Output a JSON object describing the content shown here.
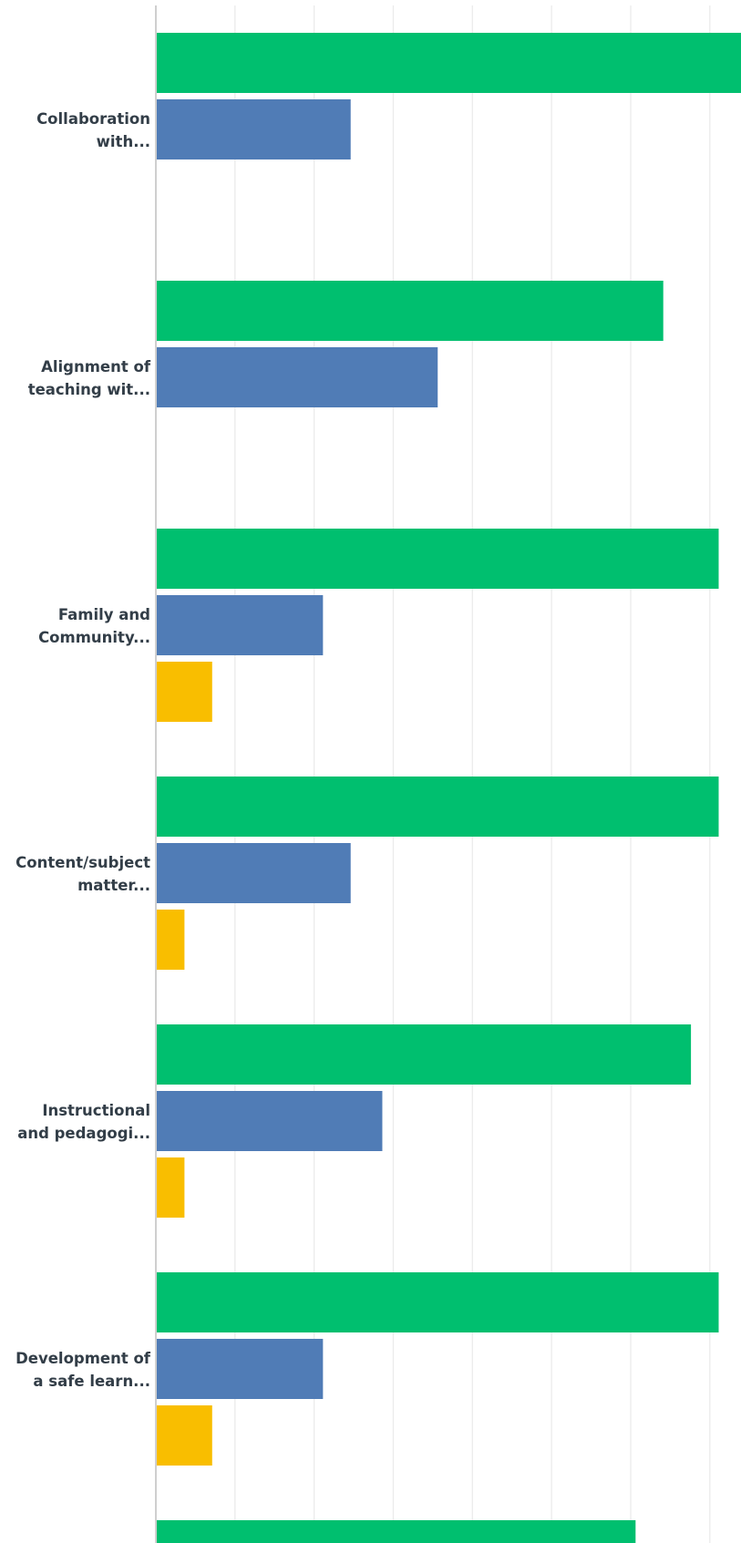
{
  "chart_data": {
    "type": "bar",
    "orientation": "horizontal",
    "grid": true,
    "legend": "none",
    "xlim": [
      0,
      100
    ],
    "categories": [
      [
        "Collaboration",
        "with..."
      ],
      [
        "Alignment of",
        "teaching wit..."
      ],
      [
        "Family and",
        "Community..."
      ],
      [
        "Content/subject",
        "matter..."
      ],
      [
        "Instructional",
        "and pedagogi..."
      ],
      [
        "Development of",
        "a safe learn..."
      ],
      [
        "",
        ""
      ]
    ],
    "series": [
      {
        "color": "#00bf6f",
        "values": [
          74,
          64,
          71,
          71,
          67.5,
          71,
          60.5
        ]
      },
      {
        "color": "#507cb6",
        "values": [
          24.5,
          35.5,
          21,
          24.5,
          28.5,
          21,
          null
        ]
      },
      {
        "color": "#f9be00",
        "values": [
          null,
          null,
          7,
          3.5,
          3.5,
          7,
          null
        ]
      }
    ]
  }
}
